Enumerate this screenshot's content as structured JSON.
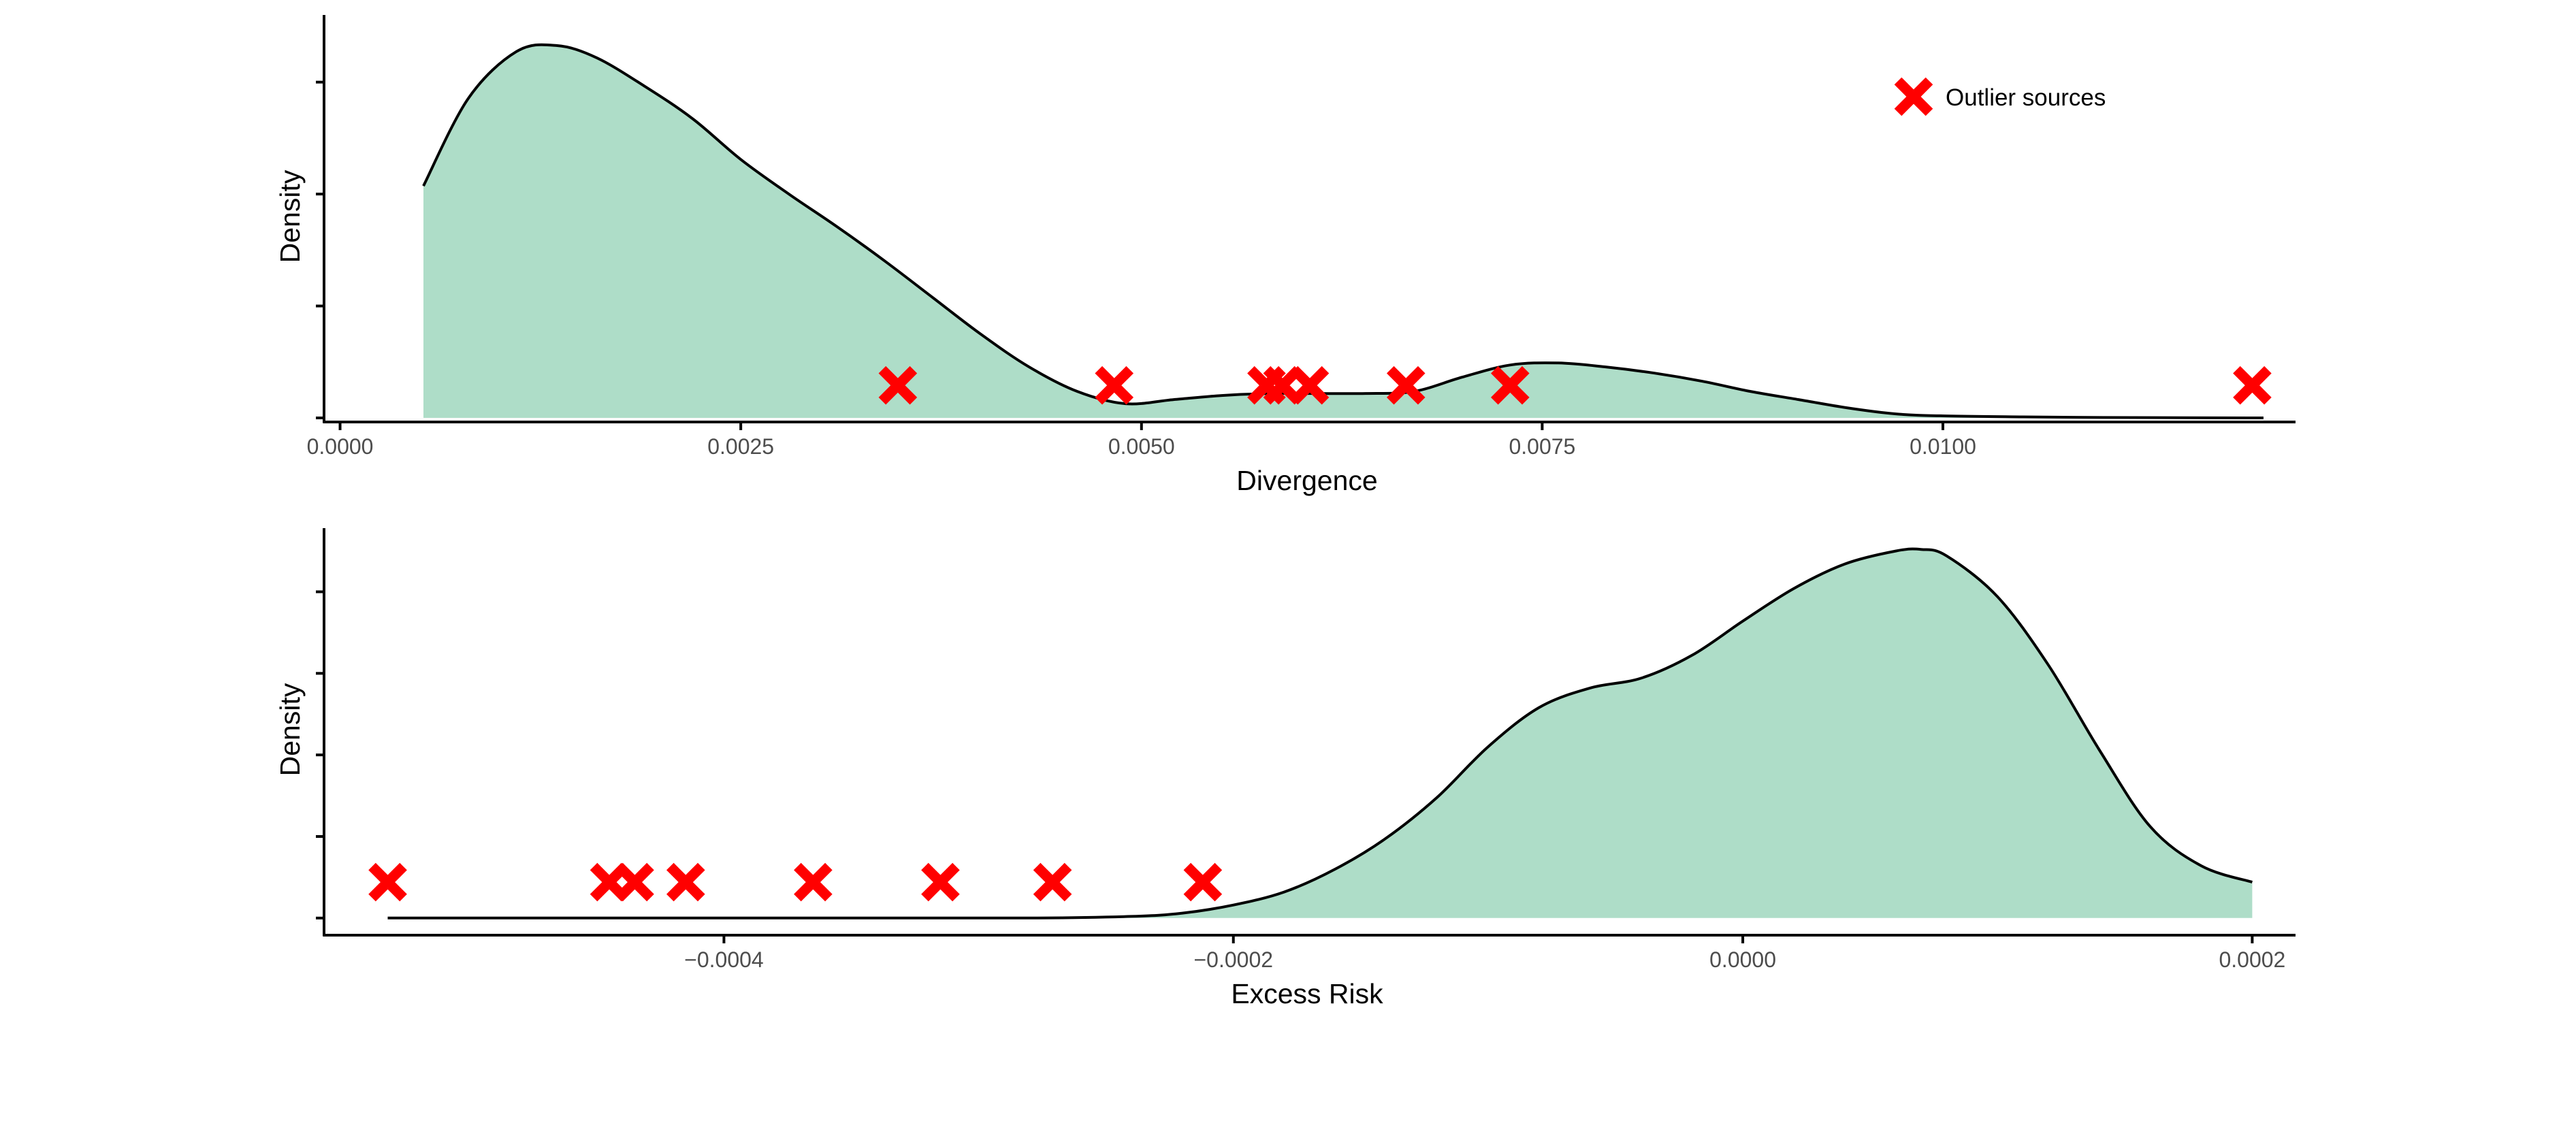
{
  "colors": {
    "fill": "#AEDDC8",
    "line": "#000000",
    "marker": "#FF0000",
    "axis": "#000000",
    "tick_text": "#4D4D4D"
  },
  "legend": {
    "label": "Outlier sources",
    "marker_icon": "red-x-icon",
    "placement": "top-right"
  },
  "chart_data": [
    {
      "type": "area",
      "name": "divergence-density",
      "xlabel": "Divergence",
      "ylabel": "Density",
      "xlim": [
        -0.0001,
        0.0122
      ],
      "ylim": [
        -2,
        198
      ],
      "xticks": [
        0,
        0.0025,
        0.005,
        0.0075,
        0.01
      ],
      "xtick_labels": [
        "0.0000",
        "0.0025",
        "0.0050",
        "0.0075",
        "0.0100"
      ],
      "yticks": [
        0,
        55,
        110,
        165
      ],
      "ytick_labels": [
        "",
        "",
        "",
        ""
      ],
      "grid": false,
      "density": {
        "x": [
          0.00052,
          0.0008,
          0.0011,
          0.00135,
          0.0016,
          0.0019,
          0.0022,
          0.0025,
          0.0028,
          0.0031,
          0.0034,
          0.0037,
          0.004,
          0.0043,
          0.0046,
          0.0049,
          0.0052,
          0.0055,
          0.0058,
          0.0061,
          0.0064,
          0.0067,
          0.007,
          0.0073,
          0.0076,
          0.0079,
          0.0082,
          0.0085,
          0.0088,
          0.0091,
          0.0094,
          0.0097,
          0.01,
          0.0105,
          0.011,
          0.0115,
          0.012
        ],
        "y": [
          114,
          157,
          180,
          183,
          177,
          163,
          147,
          127,
          110,
          94,
          77,
          59,
          41,
          25,
          13,
          7,
          9,
          11,
          12,
          12,
          12,
          13,
          20,
          26,
          27,
          25,
          22,
          18,
          13,
          9,
          5,
          2,
          1,
          0.5,
          0.2,
          0.1,
          0
        ]
      },
      "outliers": {
        "x": [
          0.00348,
          0.00483,
          0.00578,
          0.00588,
          0.00605,
          0.00665,
          0.0073,
          0.01193
        ],
        "y": 16
      }
    },
    {
      "type": "area",
      "name": "excess-risk-density",
      "xlabel": "Excess Risk",
      "ylabel": "Density",
      "xlim": [
        -0.000557,
        0.000217
      ],
      "ylim": [
        -1.05,
        23.9
      ],
      "xticks": [
        -0.0004,
        -0.0002,
        0,
        0.0002
      ],
      "xtick_labels": [
        "−0.0004",
        "−0.0002",
        "0.0000",
        "0.0002"
      ],
      "yticks": [
        0,
        5,
        10,
        15,
        20
      ],
      "ytick_labels": [
        "",
        "",
        "",
        "",
        ""
      ],
      "grid": false,
      "density": {
        "x": [
          -0.000532,
          -0.00045,
          -0.00035,
          -0.00028,
          -0.00024,
          -0.00022,
          -0.0002,
          -0.00018,
          -0.00016,
          -0.00014,
          -0.00012,
          -0.0001,
          -8e-05,
          -6e-05,
          -4e-05,
          -2e-05,
          0,
          2e-05,
          4e-05,
          6e-05,
          7e-05,
          8e-05,
          0.0001,
          0.00012,
          0.00014,
          0.00016,
          0.00018,
          0.0002
        ],
        "y": [
          0,
          0,
          0,
          0,
          0.1,
          0.3,
          0.8,
          1.6,
          3,
          4.9,
          7.4,
          10.5,
          12.9,
          14.1,
          14.7,
          16.1,
          18.2,
          20.2,
          21.7,
          22.5,
          22.6,
          22.2,
          19.7,
          15.5,
          10.3,
          5.6,
          3.2,
          2.2
        ]
      },
      "outliers": {
        "x": [
          -0.000532,
          -0.000445,
          -0.000435,
          -0.000415,
          -0.000365,
          -0.000315,
          -0.000271,
          -0.000212
        ],
        "y": 2.2
      }
    }
  ]
}
